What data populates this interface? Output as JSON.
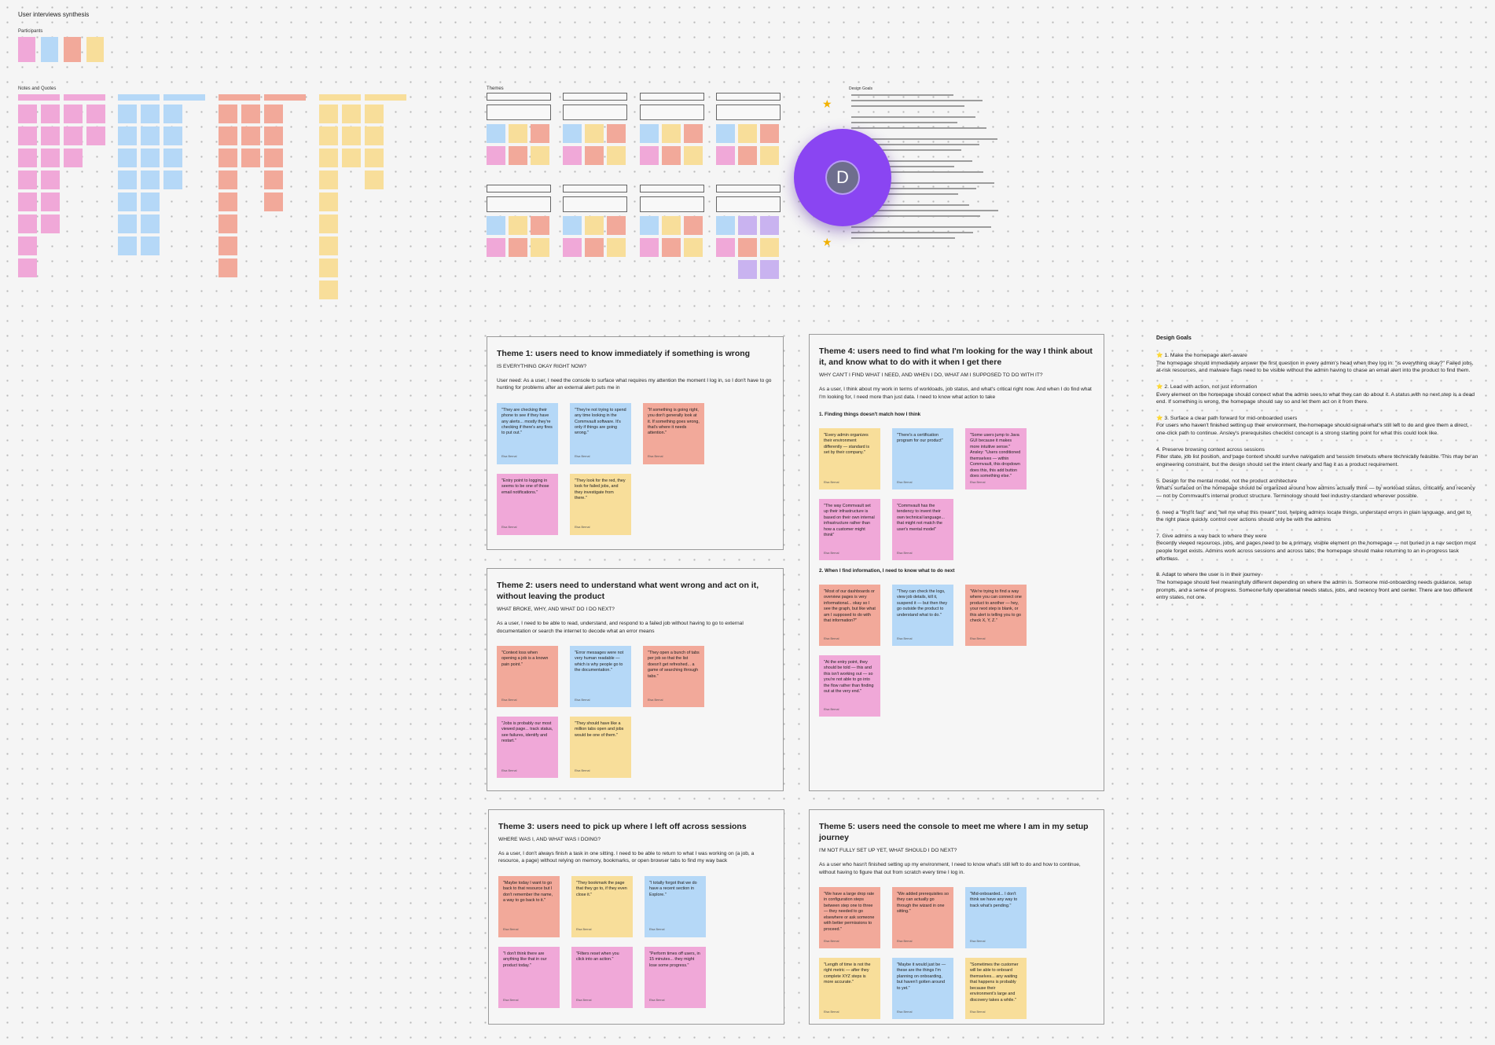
{
  "board": {
    "title": "User interviews synthesis",
    "participants_label": "Participants",
    "notes_label": "Notes and Quotes",
    "themes_label": "Themes",
    "design_goals_label": "Design Goals",
    "avatar": "D"
  },
  "themes": [
    {
      "title": "Theme 1: users need to know immediately if something is wrong",
      "question": "IS EVERYTHING OKAY RIGHT NOW?",
      "need": "User need: As a user, I need the console to surface what requires my attention the moment I log in, so I don't have to go hunting for problems after an external alert puts me in",
      "notes": [
        {
          "text": "\"They are checking their phone to see if they have any alerts... mostly they're checking if there's any fires to put out.\"",
          "color": "#b5d8f7",
          "author": "Elsa Bernal"
        },
        {
          "text": "\"They're not trying to spend any time looking in the Commvault software. It's only if things are going wrong.\"",
          "color": "#b5d8f7",
          "author": "Elsa Bernal"
        },
        {
          "text": "\"If something is going right, you don't generally look at it. If something goes wrong, that's where it needs attention.\"",
          "color": "#f2a99a",
          "author": "Elsa Bernal"
        },
        {
          "text": "\"Entry point to logging in seems to be one of those email notifications.\"",
          "color": "#f0a8d8",
          "author": "Elsa Bernal"
        },
        {
          "text": "\"They look for the red, they look for failed jobs, and they investigate from there.\"",
          "color": "#f8de9a",
          "author": "Elsa Bernal"
        }
      ]
    },
    {
      "title": "Theme 2: users need to understand what went wrong and act on it, without leaving the product",
      "question": "WHAT BROKE, WHY, AND WHAT DO I DO NEXT?",
      "need": "As a user, I need to be able to read, understand, and respond to a failed job without having to go to external documentation or search the internet to decode what an error means",
      "notes": [
        {
          "text": "\"Context loss when opening a job is a known pain point.\"",
          "color": "#f2a99a",
          "author": "Elsa Bernal"
        },
        {
          "text": "\"Error messages were not very human readable — which is why people go to the documentation.\"",
          "color": "#b5d8f7",
          "author": "Elsa Bernal"
        },
        {
          "text": "\"They open a bunch of tabs per job so that the list doesn't get refreshed... a game of searching through tabs.\"",
          "color": "#f2a99a",
          "author": "Elsa Bernal"
        },
        {
          "text": "\"Jobs is probably our most viewed page... track status, see failures, identify and restart.\"",
          "color": "#f0a8d8",
          "author": "Elsa Bernal"
        },
        {
          "text": "\"They should have like a million tabs open and jobs would be one of them.\"",
          "color": "#f8de9a",
          "author": "Elsa Bernal"
        }
      ]
    },
    {
      "title": "Theme 3: users need to pick up where I left off across sessions",
      "question": "WHERE WAS I, AND WHAT WAS I DOING?",
      "need": "As a user, I don't always finish a task in one sitting. I need to be able to return to what I was working on (a job, a resource, a page) without relying on memory, bookmarks, or open browser tabs to find my way back",
      "notes": [
        {
          "text": "\"Maybe today I want to go back to that resource but I don't remember the name, a way to go back to it.\"",
          "color": "#f2a99a",
          "author": "Elsa Bernal"
        },
        {
          "text": "\"They bookmark the page that they go to, if they even close it.\"",
          "color": "#f8de9a",
          "author": "Elsa Bernal"
        },
        {
          "text": "\"I totally forgot that we do have a recent section in Explore.\"",
          "color": "#b5d8f7",
          "author": "Elsa Bernal"
        },
        {
          "text": "\"I don't think there are anything like that in our product today.\"",
          "color": "#f0a8d8",
          "author": "Elsa Bernal"
        },
        {
          "text": "\"Filters reset when you click into an action.\"",
          "color": "#f0a8d8",
          "author": "Elsa Bernal"
        },
        {
          "text": "\"Perform times off users, in 15 minutes... they might lose some progress.\"",
          "color": "#f0a8d8",
          "author": "Elsa Bernal"
        }
      ]
    },
    {
      "title": "Theme 4: users need to find what I'm looking for the way I think about it, and know what to do with it when I get there",
      "question": "WHY CAN'T I FIND WHAT I NEED, AND WHEN I DO, WHAT AM I SUPPOSED TO DO WITH IT?",
      "need": "As a user, I think about my work in terms of workloads, job status, and what's critical right now. And when I do find what I'm looking for, I need more than just data. I need to know what action to take",
      "sections": [
        {
          "heading": "1.  Finding things doesn't match how I think",
          "notes": [
            {
              "text": "\"Every admin organizes their environment differently — standard is set by their company.\"",
              "color": "#f8de9a",
              "author": "Elsa Bernal"
            },
            {
              "text": "\"There's a certification program for our product\"",
              "color": "#b5d8f7",
              "author": "Elsa Bernal"
            },
            {
              "text": "\"Some users jump to Java GUI because it makes more intuitive sense.\" Ansley: \"Users conditioned themselves — within Commvault, this dropdown does this, this add button does something else.\"",
              "color": "#f0a8d8",
              "author": "Elsa Bernal"
            },
            {
              "text": "\"The way Commvault set up their infrastructure is based on their own internal infrastructure rather than how a customer might think\"",
              "color": "#f0a8d8",
              "author": "Elsa Bernal"
            },
            {
              "text": "\"Commvault has the tendency to invent their own technical language... that might not match the user's mental model\"",
              "color": "#f0a8d8",
              "author": "Elsa Bernal"
            }
          ]
        },
        {
          "heading": "2.  When I find information, I need to know what to do next",
          "notes": [
            {
              "text": "\"Most of our dashboards or overview pages is very informational... okay so I see the graph, but like what am I supposed to do with that information?\"",
              "color": "#f2a99a",
              "author": "Elsa Bernal"
            },
            {
              "text": "\"They can check the logs, view job details, kill it, suspend it — but then they go outside the product to understand what to do.\"",
              "color": "#b5d8f7",
              "author": "Elsa Bernal"
            },
            {
              "text": "\"We're trying to find a way where you can connect one product to another — hey, your next step is blank, or this alert is telling you to go check X, Y, Z.\"",
              "color": "#f2a99a",
              "author": "Elsa Bernal"
            },
            {
              "text": "\"At the entry point, they should be told — this and this isn't working out — so you're not able to go into the flow rather than finding out at the very end.\"",
              "color": "#f0a8d8",
              "author": "Elsa Bernal"
            }
          ]
        }
      ]
    },
    {
      "title": "Theme 5: users need the console to meet me where I am in my setup journey",
      "question": "I'M NOT FULLY SET UP YET, WHAT SHOULD I DO NEXT?",
      "need": "As a user who hasn't finished setting up my environment, I need to know what's still left to do and how to continue, without having to figure that out from scratch every time I log in.",
      "notes": [
        {
          "text": "\"We have a large drop rate in configuration steps between step one to three — they needed to go elsewhere or ask someone with better permissions to proceed.\"",
          "color": "#f2a99a",
          "author": "Elsa Bernal"
        },
        {
          "text": "\"We added prerequisites so they can actually go through the wizard in one sitting.\"",
          "color": "#f2a99a",
          "author": "Elsa Bernal"
        },
        {
          "text": "\"Mid-onboarded... I don't think we have any way to track what's pending.\"",
          "color": "#b5d8f7",
          "author": "Elsa Bernal"
        },
        {
          "text": "\"Length of time is not the right metric — after they complete XYZ steps is more accurate.\"",
          "color": "#f8de9a",
          "author": "Elsa Bernal"
        },
        {
          "text": "\"Maybe it would just be — these are the things I'm planning on onboarding, but haven't gotten around to yet.\"",
          "color": "#b5d8f7",
          "author": "Elsa Bernal"
        },
        {
          "text": "\"Sometimes the customer will be able to onboard themselves... any waiting that happens is probably because their environment's large and discovery takes a while.\"",
          "color": "#f8de9a",
          "author": "Elsa Bernal"
        }
      ]
    }
  ],
  "design_goals": {
    "title": "Design Goals",
    "items": [
      {
        "title": "⭐ 1. Make the homepage alert-aware",
        "body": "The homepage should immediately answer the first question in every admin's head when they log in: \"is everything okay?\" Failed jobs, at-risk resources, and malware flags need to be visible without the admin having to chase an email alert into the product to find them."
      },
      {
        "title": "⭐ 2. Lead with action, not just information",
        "body": "Every element on the homepage should connect what the admin sees to what they can do about it. A status with no next step is a dead end. If something is wrong, the homepage should say so and let them act on it from there."
      },
      {
        "title": "⭐ 3. Surface a clear path forward for mid-onboarded users",
        "body": "For users who haven't finished setting up their environment, the homepage should signal what's still left to do and give them a direct, one-click path to continue. Ansley's prerequisites checklist concept is a strong starting point for what this could look like."
      },
      {
        "title": "4. Preserve browsing context across sessions",
        "body": "Filter state, job list position, and page context should survive navigation and session timeouts where technically feasible. This may be an engineering constraint, but the design should set the intent clearly and flag it as a product requirement."
      },
      {
        "title": "5. Design for the mental model, not the product architecture",
        "body": "What's surfaced on the homepage should be organized around how admins actually think — by workload status, criticality, and recency — not by Commvault's internal product structure. Terminology should feel industry-standard wherever possible."
      },
      {
        "title": "6. need a \"find'it fast\" and \"tell me what this meant\" tool, helping admins locate things, understand errors in plain language, and get to the right place quickly. control over actions should only be with the admins",
        "body": ""
      },
      {
        "title": "7. Give admins a way back to where they were",
        "body": "Recently viewed resources, jobs, and pages need to be a primary, visible element on the homepage — not buried in a nav section most people forget exists. Admins work across sessions and across tabs; the homepage should make returning to an in-progress task effortless."
      },
      {
        "title": "8. Adapt to where the user is in their journey",
        "body": "The homepage should feel meaningfully different depending on where the admin is. Someone mid-onboarding needs guidance, setup prompts, and a sense of progress. Someone fully operational needs status, jobs, and recency front and center. There are two different entry states, not one."
      }
    ]
  }
}
